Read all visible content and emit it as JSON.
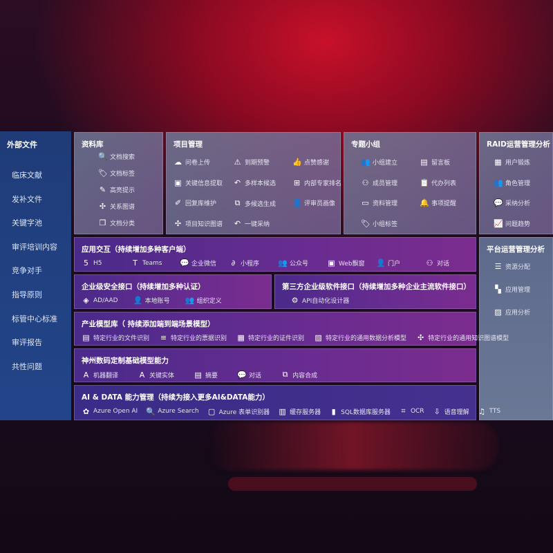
{
  "sidebar": {
    "title": "外部文件",
    "items": [
      "临床文献",
      "发补文件",
      "关键字池",
      "审评培训内容",
      "竞争对手",
      "指导原则",
      "标管中心标准",
      "审评报告",
      "共性问题"
    ]
  },
  "library": {
    "title": "资料库",
    "items": [
      {
        "icon": "doc-search-icon",
        "label": "文档搜索"
      },
      {
        "icon": "tag-icon",
        "label": "文档标签"
      },
      {
        "icon": "pen-icon",
        "label": "高亮提示"
      },
      {
        "icon": "graph-icon",
        "label": "关系图谱"
      },
      {
        "icon": "copy-icon",
        "label": "文档分类"
      }
    ]
  },
  "project": {
    "title": "项目管理",
    "items": [
      {
        "icon": "cloud-upload-icon",
        "label": "问卷上传"
      },
      {
        "icon": "alarm-icon",
        "label": "到期预警"
      },
      {
        "icon": "thumbs-up-icon",
        "label": "点赞感谢"
      },
      {
        "icon": "window-icon",
        "label": "关键信息提取"
      },
      {
        "icon": "reply-icon",
        "label": "多样本候选"
      },
      {
        "icon": "rank-icon",
        "label": "内部专家排名"
      },
      {
        "icon": "edit-icon",
        "label": "回复库维护"
      },
      {
        "icon": "puzzle-icon",
        "label": "多候选生成"
      },
      {
        "icon": "user-icon",
        "label": "评审员画像"
      },
      {
        "icon": "graph-icon",
        "label": "项目知识图谱"
      },
      {
        "icon": "reply-icon",
        "label": "一键采纳"
      }
    ]
  },
  "group": {
    "title": "专题小组",
    "items": [
      {
        "icon": "users-icon",
        "label": "小组建立"
      },
      {
        "icon": "bbs-icon",
        "label": "留言板"
      },
      {
        "icon": "user-add-icon",
        "label": "成员管理"
      },
      {
        "icon": "clipboard-icon",
        "label": "代办列表"
      },
      {
        "icon": "folder-icon",
        "label": "资料管理"
      },
      {
        "icon": "bell-icon",
        "label": "事项提醒"
      },
      {
        "icon": "tag-icon",
        "label": "小组标签"
      }
    ]
  },
  "raid": {
    "title": "RAID运营管理分析",
    "items": [
      {
        "icon": "id-card-icon",
        "label": "用户锻炼"
      },
      {
        "icon": "users-icon",
        "label": "角色管理"
      },
      {
        "icon": "qa-icon",
        "label": "采纳分析"
      },
      {
        "icon": "trend-icon",
        "label": "问题趋势"
      }
    ]
  },
  "platform": {
    "title": "平台运营管理分析",
    "items": [
      {
        "icon": "list-icon",
        "label": "资源分配"
      },
      {
        "icon": "apps-icon",
        "label": "应用管理"
      },
      {
        "icon": "chart-icon",
        "label": "应用分析"
      }
    ]
  },
  "interaction": {
    "title": "应用交互（持续增加多种客户端）",
    "items": [
      {
        "icon": "html5-icon",
        "label": "H5"
      },
      {
        "icon": "teams-icon",
        "label": "Teams"
      },
      {
        "icon": "wechat-icon",
        "label": "企业微信"
      },
      {
        "icon": "miniprogram-icon",
        "label": "小程序"
      },
      {
        "icon": "users-icon",
        "label": "公众号"
      },
      {
        "icon": "window-icon",
        "label": "Web飘窗"
      },
      {
        "icon": "portal-icon",
        "label": "门户"
      },
      {
        "icon": "chat-users-icon",
        "label": "对话"
      }
    ]
  },
  "security": {
    "title": "企业级安全接口（持续增加多种认证）",
    "items": [
      {
        "icon": "ad-icon",
        "label": "AD/AAD"
      },
      {
        "icon": "account-icon",
        "label": "本地账号"
      },
      {
        "icon": "org-icon",
        "label": "组织定义"
      }
    ]
  },
  "thirdparty": {
    "title": "第三方企业级软件接口（持续增加多种企业主流软件接口）",
    "items": [
      {
        "icon": "gear-icon",
        "label": "API自动化设计器"
      }
    ]
  },
  "industry": {
    "title": "产业模型库（ 持续添加端到端场景模型）",
    "items": [
      {
        "icon": "doc-icon",
        "label": "特定行业的文件识别"
      },
      {
        "icon": "receipt-icon",
        "label": "特定行业的票据识别"
      },
      {
        "icon": "id-card-icon",
        "label": "特定行业的证件识别"
      },
      {
        "icon": "chart-icon",
        "label": "特定行业的通用数据分析模型"
      },
      {
        "icon": "graph-icon",
        "label": "特定行业的通用知识图谱模型"
      }
    ]
  },
  "base": {
    "title": "神州数码定制基础模型能力",
    "items": [
      {
        "icon": "translate-icon",
        "label": "机器翻译"
      },
      {
        "icon": "entity-icon",
        "label": "关键实体"
      },
      {
        "icon": "summary-icon",
        "label": "摘要"
      },
      {
        "icon": "chat-icon",
        "label": "对话"
      },
      {
        "icon": "puzzle-icon",
        "label": "内容合成"
      }
    ]
  },
  "aidata": {
    "title": "AI & DATA 能力管理（持续为接入更多AI&DATA能力）",
    "items": [
      {
        "icon": "openai-icon",
        "label": "Azure Open AI"
      },
      {
        "icon": "search-icon",
        "label": "Azure Search"
      },
      {
        "icon": "form-icon",
        "label": "Azure 表单识别器"
      },
      {
        "icon": "cache-icon",
        "label": "缓存服务器"
      },
      {
        "icon": "database-icon",
        "label": "SQL数据库服务器"
      },
      {
        "icon": "ocr-icon",
        "label": "OCR"
      },
      {
        "icon": "voice-icon",
        "label": "语音理解"
      },
      {
        "icon": "tts-icon",
        "label": "TTS"
      }
    ]
  }
}
